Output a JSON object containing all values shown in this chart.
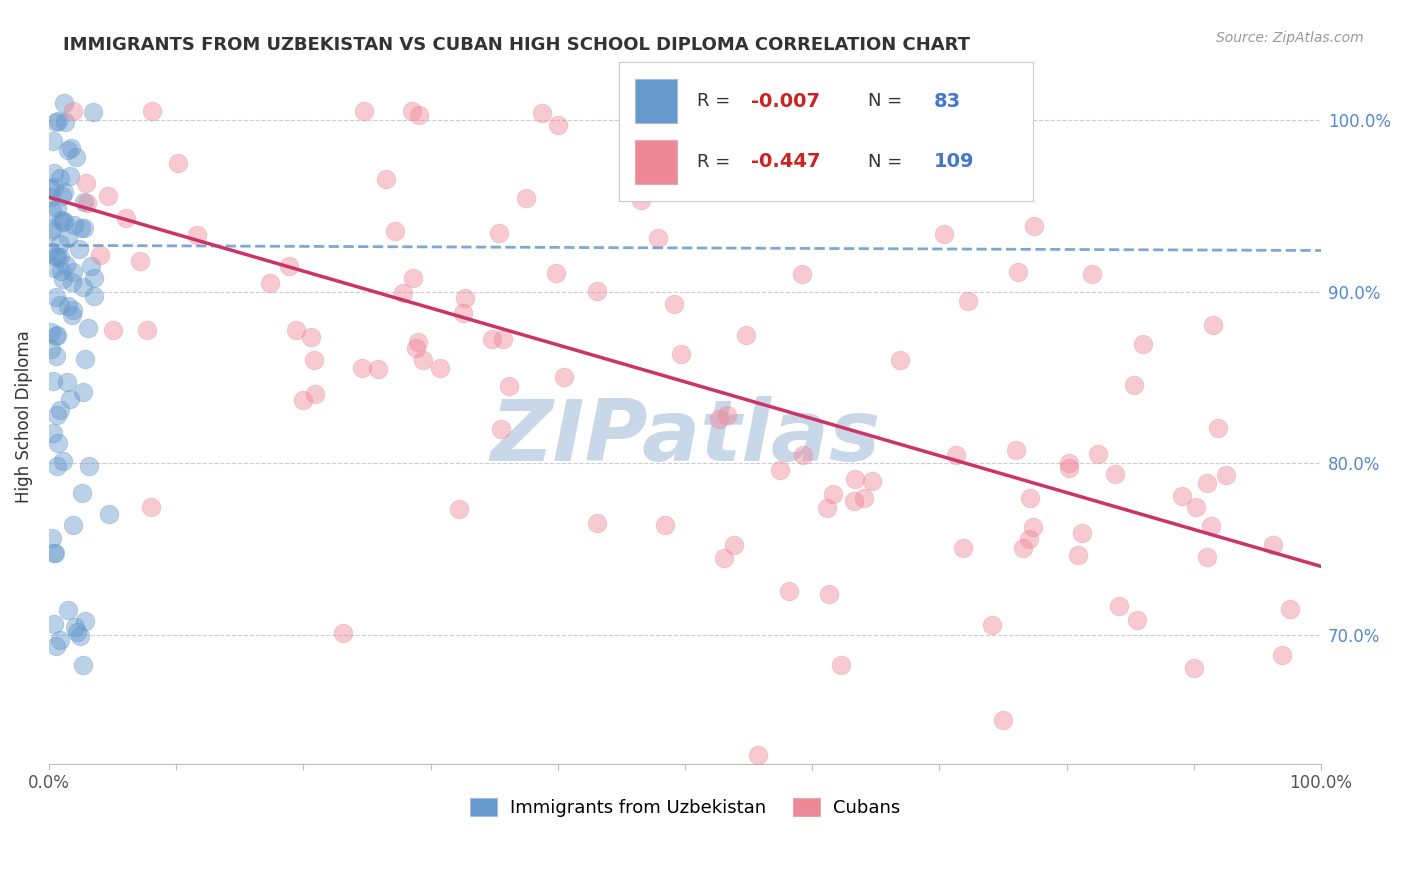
{
  "title": "IMMIGRANTS FROM UZBEKISTAN VS CUBAN HIGH SCHOOL DIPLOMA CORRELATION CHART",
  "source": "Source: ZipAtlas.com",
  "ylabel": "High School Diploma",
  "legend_label1": "Immigrants from Uzbekistan",
  "legend_label2": "Cubans",
  "R1": -0.007,
  "N1": 83,
  "R2": -0.447,
  "N2": 109,
  "xlim": [
    0.0,
    1.0
  ],
  "ylim": [
    0.625,
    1.03
  ],
  "yticks": [
    0.7,
    0.8,
    0.9,
    1.0
  ],
  "ytick_labels": [
    "70.0%",
    "80.0%",
    "90.0%",
    "100.0%"
  ],
  "color_uzbek": "#6699cc",
  "color_cuban": "#ee8899",
  "trendline_uzbek": "#6699cc",
  "trendline_cuban": "#cc3366",
  "background": "#ffffff",
  "watermark": "ZIPatlas",
  "watermark_color": "#c8d8e8",
  "title_color": "#333333",
  "source_color": "#999999"
}
